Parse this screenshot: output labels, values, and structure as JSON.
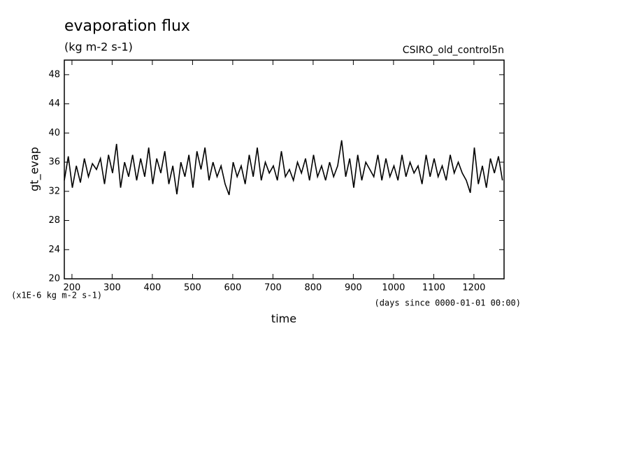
{
  "chart_data": {
    "type": "line",
    "title": "evaporation flux",
    "subtitle": "(kg m-2 s-1)",
    "dataset": "CSIRO_old_control5n",
    "y_label": "gt_evap",
    "y_units": "(x1E-6 kg m-2 s-1)",
    "x_label": "time",
    "x_units": "(days since 0000-01-01 00:00)",
    "color": "#000000",
    "xlim": [
      181,
      1275
    ],
    "ylim": [
      20,
      50
    ],
    "xticks": [
      200,
      300,
      400,
      500,
      600,
      700,
      800,
      900,
      1000,
      1100,
      1200
    ],
    "yticks": [
      20,
      24,
      28,
      32,
      36,
      40,
      44,
      48
    ],
    "x": [
      181,
      191,
      201,
      211,
      221,
      231,
      241,
      251,
      261,
      271,
      281,
      291,
      301,
      311,
      321,
      331,
      341,
      351,
      361,
      371,
      381,
      391,
      401,
      411,
      421,
      431,
      441,
      451,
      461,
      471,
      481,
      491,
      501,
      511,
      521,
      531,
      541,
      551,
      561,
      571,
      581,
      591,
      601,
      611,
      621,
      631,
      641,
      651,
      661,
      671,
      681,
      691,
      701,
      711,
      721,
      731,
      741,
      751,
      761,
      771,
      781,
      791,
      801,
      811,
      821,
      831,
      841,
      851,
      861,
      871,
      881,
      891,
      901,
      911,
      921,
      931,
      941,
      951,
      961,
      971,
      981,
      991,
      1001,
      1011,
      1021,
      1031,
      1041,
      1051,
      1061,
      1071,
      1081,
      1091,
      1101,
      1111,
      1121,
      1131,
      1141,
      1151,
      1161,
      1171,
      1181,
      1191,
      1201,
      1211,
      1221,
      1231,
      1241,
      1251,
      1261,
      1271
    ],
    "values": [
      33.5,
      36.8,
      32.5,
      35.5,
      33.2,
      36.5,
      34,
      35.8,
      35,
      36.5,
      33,
      37,
      34.5,
      38.5,
      32.5,
      36,
      34,
      37,
      33.5,
      36.5,
      34,
      38,
      33,
      36.5,
      34.5,
      37.5,
      33,
      35.5,
      31.6,
      36,
      34,
      37,
      32.5,
      37.5,
      35,
      38,
      33.5,
      36,
      34,
      35.5,
      33,
      31.5,
      36,
      34,
      35.5,
      33,
      37,
      34,
      38,
      33.5,
      36,
      34.5,
      35.5,
      33.5,
      37.5,
      34,
      35,
      33.5,
      36,
      34.5,
      36.5,
      33.5,
      37,
      34,
      35.5,
      33.5,
      36,
      34,
      35.5,
      39,
      34,
      36.5,
      32.5,
      37,
      33.5,
      36,
      35,
      34,
      37,
      33.5,
      36.5,
      34,
      35.5,
      33.5,
      37,
      34,
      36,
      34.5,
      35.5,
      33,
      37,
      34,
      36.5,
      34,
      35.5,
      33.5,
      37,
      34.5,
      36,
      34.5,
      33.5,
      31.8,
      38,
      33,
      35.5,
      32.5,
      36.5,
      34.5,
      36.8,
      33.5
    ]
  }
}
